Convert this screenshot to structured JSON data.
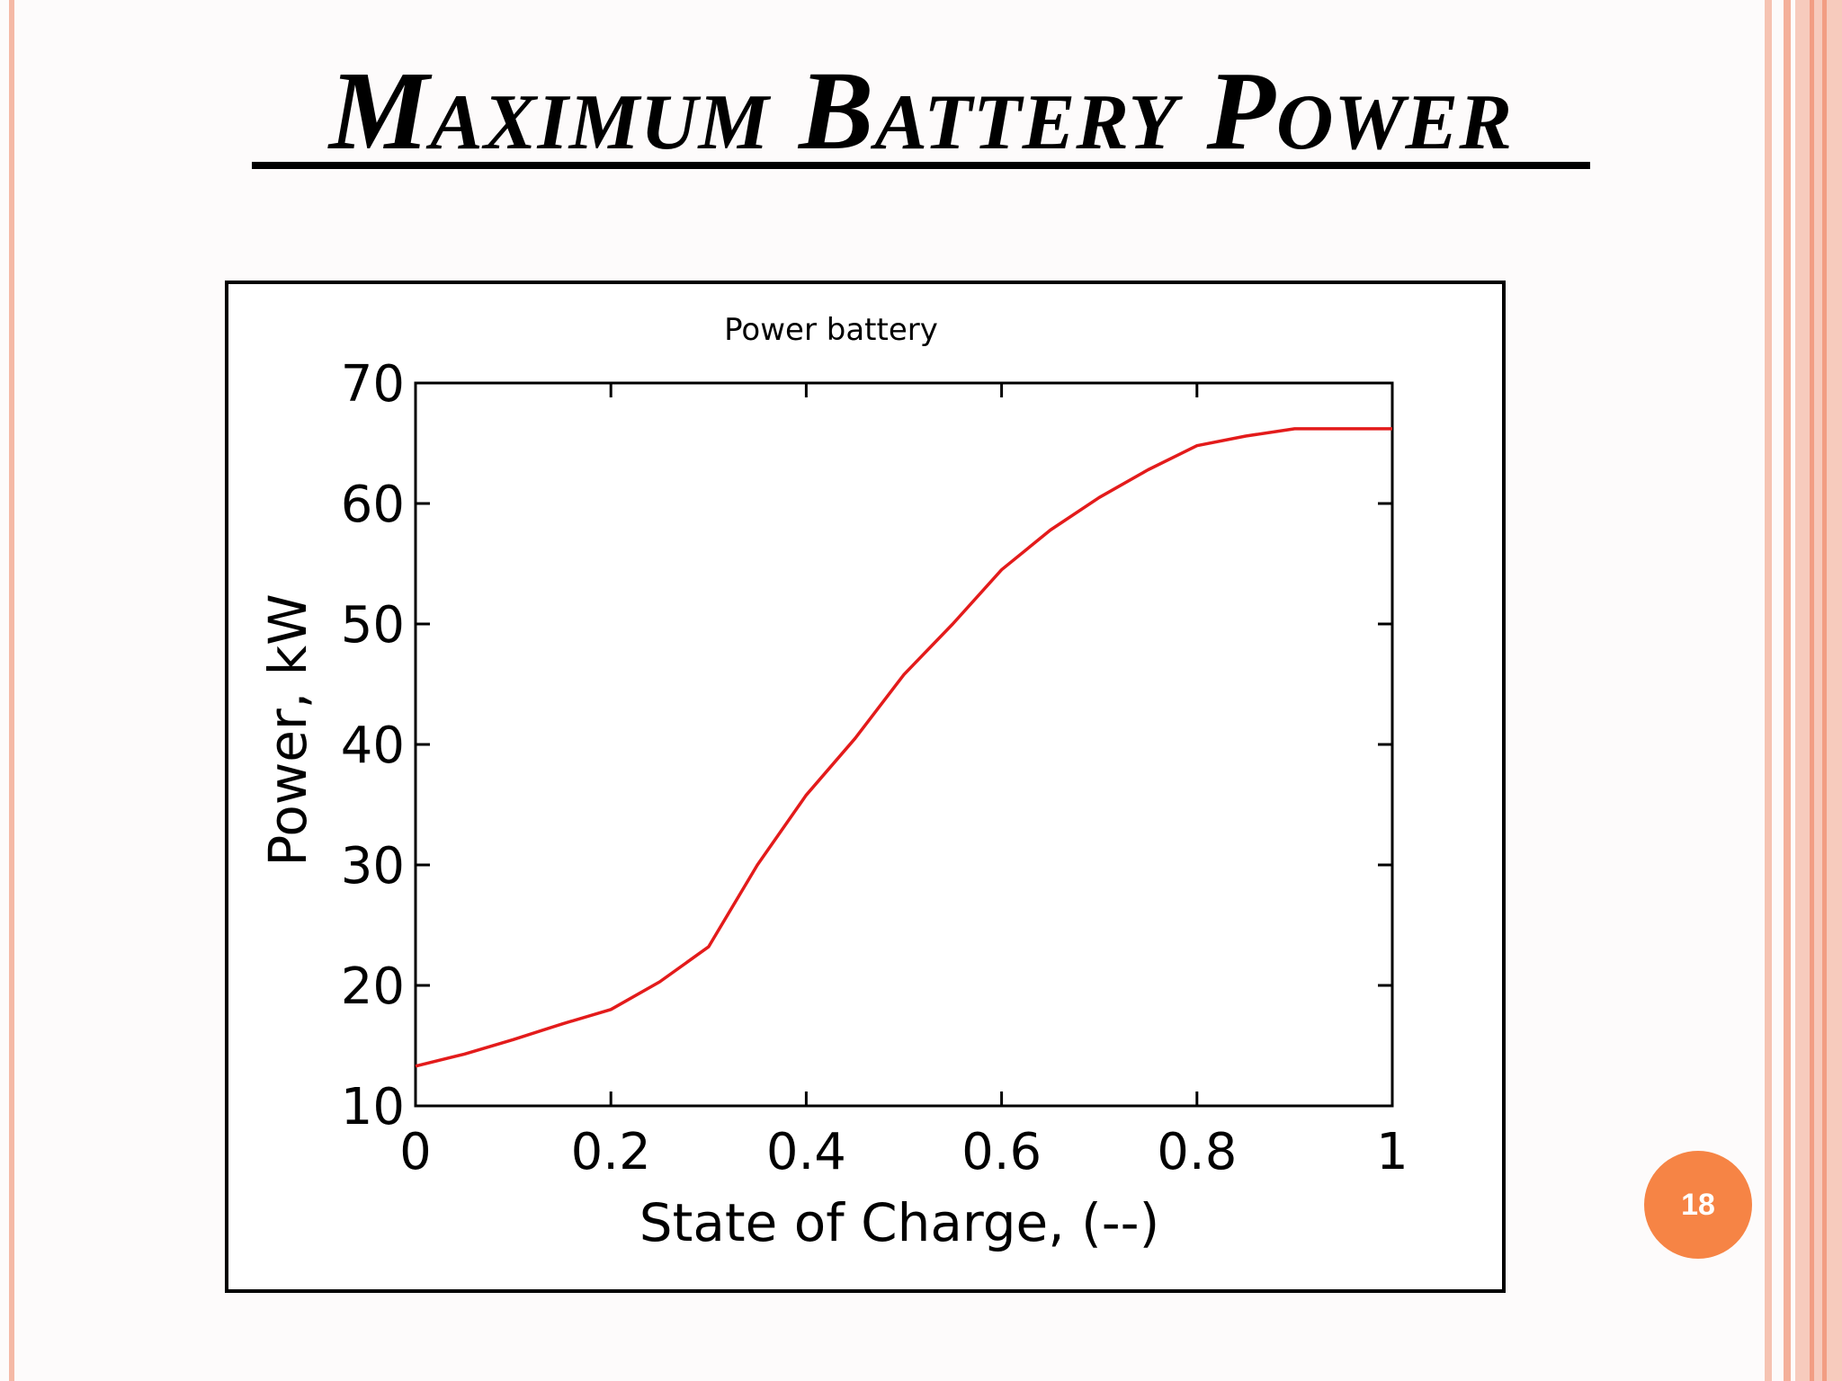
{
  "slide": {
    "title": "Maximum  Battery  Power",
    "page_number": "18",
    "colors": {
      "border_stripe": "#f5b9a6",
      "page_badge": "#f68445",
      "curve": "#e31b1b"
    }
  },
  "chart_data": {
    "type": "line",
    "title": "Power battery",
    "xlabel": "State of Charge, (--)",
    "ylabel": "Power, kW",
    "xlim": [
      0,
      1
    ],
    "ylim": [
      10,
      70
    ],
    "xticks": [
      "0",
      "0.2",
      "0.4",
      "0.6",
      "0.8",
      "1"
    ],
    "yticks": [
      "10",
      "20",
      "30",
      "40",
      "50",
      "60",
      "70"
    ],
    "grid": false,
    "series": [
      {
        "color": "#e31b1b",
        "x": [
          0,
          0.05,
          0.1,
          0.15,
          0.2,
          0.25,
          0.3,
          0.35,
          0.4,
          0.45,
          0.5,
          0.55,
          0.6,
          0.65,
          0.7,
          0.75,
          0.8,
          0.85,
          0.9,
          0.95,
          1.0
        ],
        "y": [
          13.3,
          14.3,
          15.5,
          16.8,
          18.0,
          20.3,
          23.2,
          30.0,
          35.8,
          40.5,
          45.8,
          50.0,
          54.5,
          57.8,
          60.5,
          62.8,
          64.8,
          65.6,
          66.2,
          66.2,
          66.2
        ]
      }
    ]
  }
}
